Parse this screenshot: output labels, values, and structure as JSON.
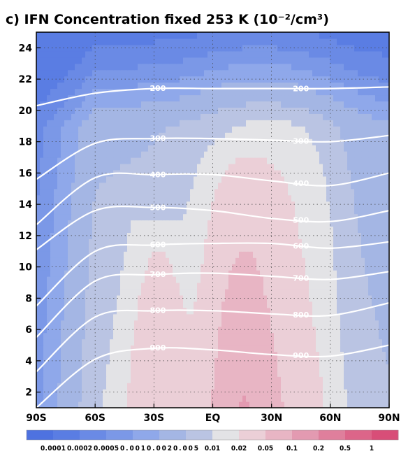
{
  "chart_data": {
    "type": "heatmap",
    "title": "c) IFN Concentration fixed 253 K (10⁻²/cm³)",
    "xlabel": "",
    "ylabel": "",
    "x_tick_labels": [
      "90S",
      "60S",
      "30S",
      "EQ",
      "30N",
      "60N",
      "90N"
    ],
    "x_ticks": [
      -90,
      -60,
      -30,
      0,
      30,
      60,
      90
    ],
    "xlim": [
      -90,
      90
    ],
    "y_tick_labels": [
      "2",
      "4",
      "6",
      "8",
      "10",
      "12",
      "14",
      "16",
      "18",
      "20",
      "22",
      "24"
    ],
    "y_ticks": [
      2,
      4,
      6,
      8,
      10,
      12,
      14,
      16,
      18,
      20,
      22,
      24
    ],
    "ylim": [
      1,
      25
    ],
    "grid": true,
    "colorbar": {
      "position": "bottom",
      "levels": [
        "0.0001",
        "0.0002",
        "0.0005",
        "0.001",
        "0.002",
        "0.005",
        "0.01",
        "0.02",
        "0.05",
        "0.1",
        "0.2",
        "0.5",
        "1"
      ],
      "colors": [
        "#4E72E0",
        "#5A7DE3",
        "#6A8AE5",
        "#7B98E7",
        "#8FA8EA",
        "#A4B6E4",
        "#BAC4E3",
        "#E3E3E6",
        "#EBCFD7",
        "#E8B5C4",
        "#E39AB1",
        "#DF7F9C",
        "#DC6589",
        "#D84E78"
      ]
    },
    "contours": [
      {
        "label": "200",
        "heights": [
          20.3,
          21.1,
          21.4,
          21.4,
          21.4,
          21.4,
          21.5
        ]
      },
      {
        "label": "300",
        "heights": [
          15.6,
          17.9,
          18.2,
          18.2,
          18.1,
          18.0,
          18.4
        ]
      },
      {
        "label": "400",
        "heights": [
          12.7,
          15.7,
          15.9,
          15.9,
          15.5,
          15.2,
          16.0
        ]
      },
      {
        "label": "500",
        "heights": [
          11.1,
          13.6,
          13.8,
          13.6,
          13.1,
          12.9,
          13.6
        ]
      },
      {
        "label": "600",
        "heights": [
          7.5,
          11.0,
          11.4,
          11.5,
          11.5,
          11.2,
          11.6
        ]
      },
      {
        "label": "700",
        "heights": [
          5.5,
          9.1,
          9.5,
          9.6,
          9.4,
          9.2,
          9.7
        ]
      },
      {
        "label": "800",
        "heights": [
          3.3,
          6.8,
          7.2,
          7.2,
          7.0,
          6.9,
          7.7
        ]
      },
      {
        "label": "900",
        "heights": [
          1.0,
          4.1,
          4.8,
          4.7,
          4.4,
          4.3,
          5.0
        ]
      }
    ]
  }
}
